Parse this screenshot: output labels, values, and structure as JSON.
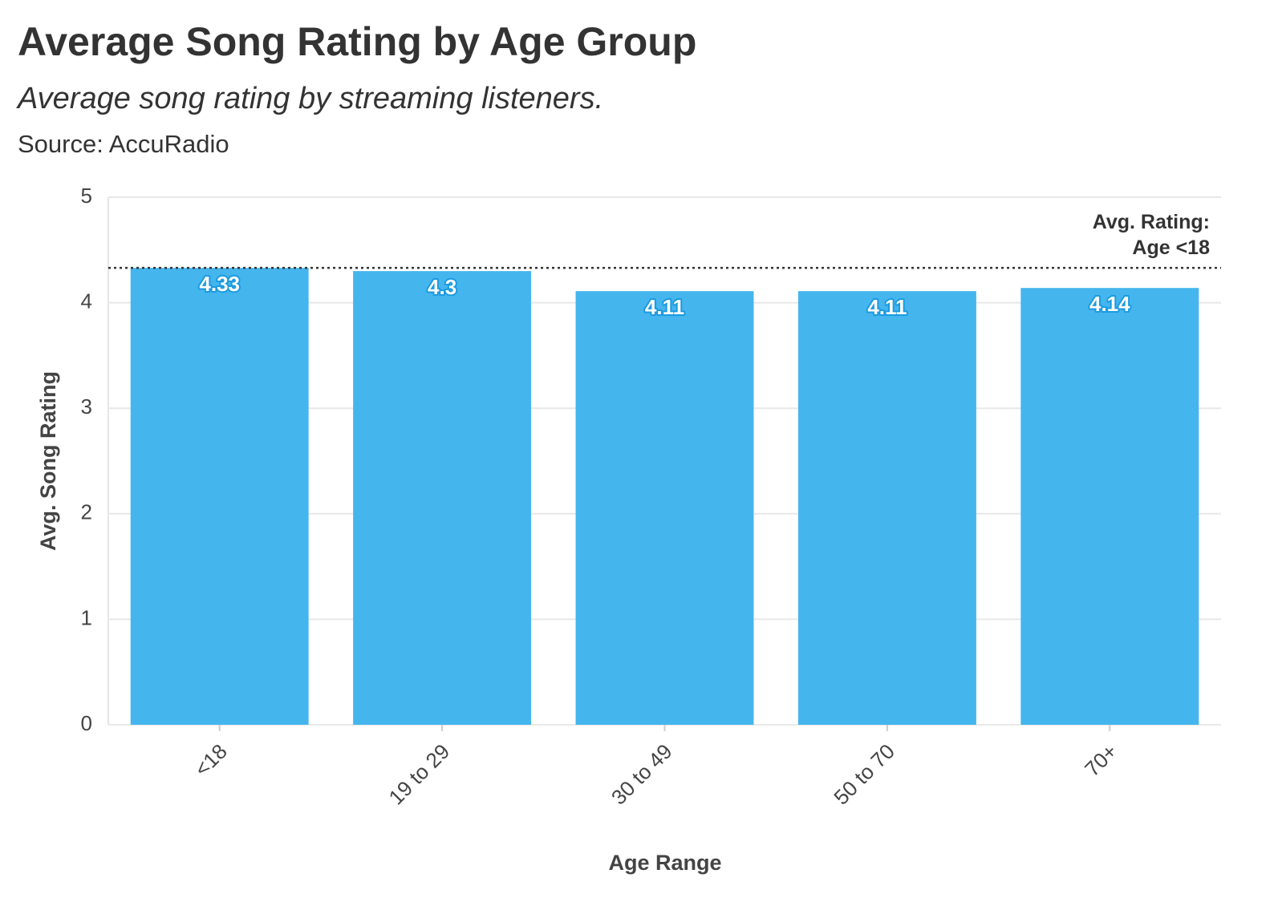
{
  "chart_data": {
    "type": "bar",
    "title": "Average Song Rating by Age Group",
    "subtitle": "Average song rating by streaming listeners.",
    "source": "Source: AccuRadio",
    "x_label": "Age Range",
    "y_label": "Avg. Song Rating",
    "categories": [
      "<18",
      "19 to 29",
      "30 to 49",
      "50 to 70",
      "70+"
    ],
    "values": [
      4.33,
      4.3,
      4.11,
      4.11,
      4.14
    ],
    "color": "#45b5ee",
    "ylim": [
      0,
      5
    ],
    "yticks": [
      0,
      1,
      2,
      3,
      4,
      5
    ],
    "grid": true,
    "reference_line": {
      "value": 4.33,
      "label": [
        "Avg. Rating:",
        "Age <18"
      ]
    }
  }
}
